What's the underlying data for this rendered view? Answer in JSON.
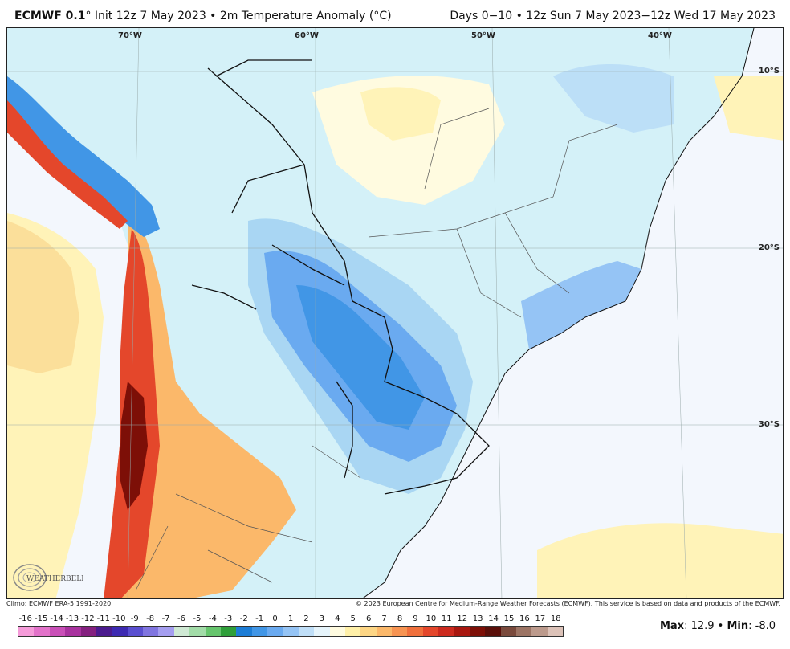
{
  "header": {
    "model": "ECMWF 0.1",
    "init": "° Init 12z 7 May 2023 • 2m Temperature Anomaly (°C)",
    "valid": "Days 0−10 • 12z Sun 7 May 2023−12z Wed 17 May 2023"
  },
  "map": {
    "lon_labels": [
      "70°W",
      "60°W",
      "50°W",
      "40°W"
    ],
    "lat_labels": [
      "10°S",
      "20°S",
      "30°S"
    ],
    "logo_text": "WEATHERBELL"
  },
  "footer": {
    "climo": "Climo: ECMWF ERA-5 1991-2020",
    "copyright": "© 2023 European Centre for Medium-Range Weather Forecasts (ECMWF). This service is based on data and products of the ECMWF."
  },
  "colorbar": {
    "ticks": [
      "-16",
      "-15",
      "-14",
      "-13",
      "-12",
      "-11",
      "-10",
      "-9",
      "-8",
      "-7",
      "-6",
      "-5",
      "-4",
      "-3",
      "-2",
      "-1",
      "0",
      "1",
      "2",
      "3",
      "4",
      "5",
      "6",
      "7",
      "8",
      "9",
      "10",
      "11",
      "12",
      "13",
      "14",
      "15",
      "16",
      "17",
      "18"
    ],
    "colors": [
      "#f59bd9",
      "#e272c9",
      "#c94fb7",
      "#a8329e",
      "#84207f",
      "#4b1b8e",
      "#3d2ab2",
      "#5a4fd0",
      "#8075e0",
      "#a59ef0",
      "#cfe9d4",
      "#a2dca8",
      "#66c56d",
      "#2f9f3a",
      "#1d7dd6",
      "#4196e6",
      "#6aaaf0",
      "#95c4f5",
      "#c0dff8",
      "#e6f4fb",
      "#fffbe0",
      "#fff0a8",
      "#fdd685",
      "#fbb86a",
      "#f79452",
      "#f0703c",
      "#e4472b",
      "#cc2a1e",
      "#a8170f",
      "#7d0f07",
      "#5a0f0a",
      "#7a4a3c",
      "#9c7464",
      "#bc9a8c",
      "#dcc2b8"
    ],
    "max_label": "Max",
    "max_value": ": 12.9 • ",
    "min_label": "Min",
    "min_value": ": -8.0"
  }
}
